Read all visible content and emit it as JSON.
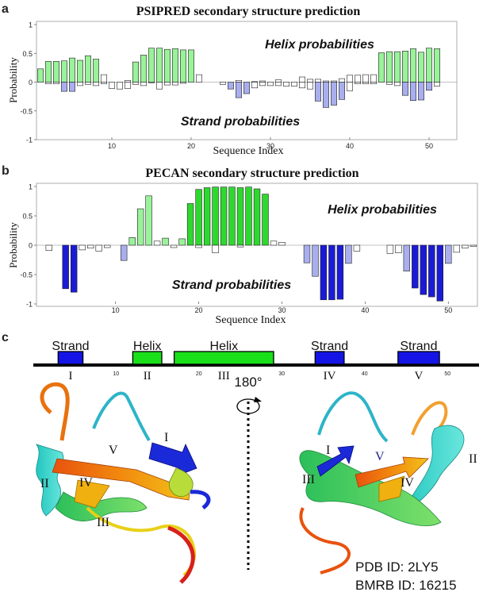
{
  "figure": {
    "panel_labels": [
      "a",
      "b",
      "c"
    ],
    "colors": {
      "helix_light": "#9af29a",
      "helix_dark": "#2ed82e",
      "strand_light": "#a9aeee",
      "strand_dark": "#1b1bd6",
      "neutral": "#ffffff",
      "element_box_strand": "#1414e6",
      "element_box_helix": "#19e019"
    }
  },
  "chart_data": [
    {
      "type": "bar",
      "panel": "a",
      "title": "PSIPRED secondary structure prediction",
      "xlabel": "Sequence Index",
      "ylabel": "Probability",
      "xlim": [
        0.5,
        53.5
      ],
      "ylim": [
        -1,
        1
      ],
      "xticks": [
        10,
        20,
        30,
        40,
        50
      ],
      "yticks": [
        -1,
        -0.5,
        0,
        0.5,
        1
      ],
      "yticklabels": [
        "-1",
        "-0.5",
        "0",
        "0.5",
        "1"
      ],
      "annotations": [
        "Helix probabilities",
        "Strand probabilities"
      ],
      "series": [
        {
          "name": "Helix",
          "values": [
            0.23,
            0.36,
            0.36,
            0.37,
            0.42,
            0.38,
            0.46,
            0.4,
            0.13,
            0,
            0,
            0.03,
            0.35,
            0.47,
            0.59,
            0.59,
            0.57,
            0.58,
            0.56,
            0.56,
            0.13,
            0,
            0,
            0,
            0,
            0.03,
            0,
            0.01,
            0.02,
            0,
            0.04,
            0,
            0,
            0.09,
            0.05,
            0.05,
            0.02,
            0.02,
            0.06,
            0.12,
            0.12,
            0.13,
            0.13,
            0.51,
            0.53,
            0.53,
            0.54,
            0.58,
            0.52,
            0.59,
            0.58,
            0,
            0
          ],
          "colors": [
            "#9af29a",
            "#9af29a",
            "#9af29a",
            "#9af29a",
            "#9af29a",
            "#9af29a",
            "#9af29a",
            "#9af29a",
            "#ffffff",
            "#ffffff",
            "#ffffff",
            "#ffffff",
            "#9af29a",
            "#9af29a",
            "#9af29a",
            "#9af29a",
            "#9af29a",
            "#9af29a",
            "#9af29a",
            "#9af29a",
            "#ffffff",
            "#ffffff",
            "#ffffff",
            "#ffffff",
            "#ffffff",
            "#ffffff",
            "#ffffff",
            "#ffffff",
            "#ffffff",
            "#ffffff",
            "#ffffff",
            "#ffffff",
            "#ffffff",
            "#ffffff",
            "#ffffff",
            "#ffffff",
            "#ffffff",
            "#ffffff",
            "#ffffff",
            "#ffffff",
            "#ffffff",
            "#ffffff",
            "#ffffff",
            "#9af29a",
            "#9af29a",
            "#9af29a",
            "#9af29a",
            "#9af29a",
            "#9af29a",
            "#9af29a",
            "#9af29a",
            "#ffffff",
            "#ffffff"
          ]
        },
        {
          "name": "Strand",
          "values": [
            0,
            -0.03,
            -0.03,
            -0.16,
            -0.16,
            -0.06,
            -0.04,
            -0.06,
            -0.03,
            -0.11,
            -0.12,
            -0.11,
            -0.04,
            -0.06,
            -0.01,
            -0.12,
            -0.05,
            -0.05,
            -0.02,
            0,
            0,
            0,
            0,
            -0.04,
            -0.12,
            -0.27,
            -0.2,
            -0.1,
            -0.06,
            -0.06,
            -0.06,
            -0.07,
            -0.07,
            -0.1,
            -0.12,
            -0.33,
            -0.44,
            -0.4,
            -0.3,
            -0.15,
            -0.03,
            -0.03,
            -0.03,
            0,
            -0.04,
            -0.06,
            -0.23,
            -0.32,
            -0.31,
            -0.14,
            -0.07,
            0,
            0
          ],
          "colors": [
            "#ffffff",
            "#ffffff",
            "#ffffff",
            "#a9aeee",
            "#a9aeee",
            "#ffffff",
            "#ffffff",
            "#ffffff",
            "#ffffff",
            "#ffffff",
            "#ffffff",
            "#ffffff",
            "#ffffff",
            "#ffffff",
            "#ffffff",
            "#ffffff",
            "#ffffff",
            "#ffffff",
            "#ffffff",
            "#ffffff",
            "#ffffff",
            "#ffffff",
            "#ffffff",
            "#ffffff",
            "#a9aeee",
            "#a9aeee",
            "#a9aeee",
            "#ffffff",
            "#ffffff",
            "#ffffff",
            "#ffffff",
            "#ffffff",
            "#ffffff",
            "#ffffff",
            "#ffffff",
            "#a9aeee",
            "#a9aeee",
            "#a9aeee",
            "#a9aeee",
            "#ffffff",
            "#ffffff",
            "#ffffff",
            "#ffffff",
            "#ffffff",
            "#ffffff",
            "#ffffff",
            "#a9aeee",
            "#a9aeee",
            "#a9aeee",
            "#a9aeee",
            "#ffffff",
            "#ffffff",
            "#ffffff"
          ]
        }
      ]
    },
    {
      "type": "bar",
      "panel": "b",
      "title": "PECAN secondary structure prediction",
      "xlabel": "Sequence Index",
      "ylabel": "Probability",
      "xlim": [
        0.5,
        53.5
      ],
      "ylim": [
        -1,
        1
      ],
      "xticks": [
        10,
        20,
        30,
        40,
        50
      ],
      "yticks": [
        -1,
        -0.5,
        0,
        0.5,
        1
      ],
      "yticklabels": [
        "-1",
        "-0.5",
        "0",
        "0.5",
        "1"
      ],
      "annotations": [
        "Helix probabilities",
        "Strand probabilities"
      ],
      "series": [
        {
          "name": "Helix",
          "values": [
            0,
            0,
            0,
            0,
            0,
            0,
            0,
            0,
            0,
            0,
            0,
            0.13,
            0.62,
            0.84,
            0.07,
            0.12,
            0,
            0.11,
            0.71,
            0.95,
            0.98,
            0.99,
            0.99,
            0.99,
            0.98,
            0.99,
            0.96,
            0.87,
            0.07,
            0.05,
            0,
            0,
            0,
            0,
            0,
            0,
            0,
            0,
            0,
            0,
            0,
            0,
            0,
            0,
            0,
            0,
            0,
            0,
            0,
            0,
            0,
            0,
            0
          ],
          "colors": [
            "#ffffff",
            "#ffffff",
            "#ffffff",
            "#ffffff",
            "#ffffff",
            "#ffffff",
            "#ffffff",
            "#ffffff",
            "#ffffff",
            "#ffffff",
            "#ffffff",
            "#9af29a",
            "#9af29a",
            "#9af29a",
            "#ffffff",
            "#9af29a",
            "#ffffff",
            "#9af29a",
            "#2ed82e",
            "#2ed82e",
            "#2ed82e",
            "#2ed82e",
            "#2ed82e",
            "#2ed82e",
            "#2ed82e",
            "#2ed82e",
            "#2ed82e",
            "#2ed82e",
            "#ffffff",
            "#ffffff",
            "#ffffff",
            "#ffffff",
            "#ffffff",
            "#ffffff",
            "#ffffff",
            "#ffffff",
            "#ffffff",
            "#ffffff",
            "#ffffff",
            "#ffffff",
            "#ffffff",
            "#ffffff",
            "#ffffff",
            "#ffffff",
            "#ffffff",
            "#ffffff",
            "#ffffff",
            "#ffffff",
            "#ffffff",
            "#ffffff",
            "#ffffff",
            "#ffffff",
            "#ffffff"
          ]
        },
        {
          "name": "Strand",
          "values": [
            0,
            -0.09,
            0,
            -0.74,
            -0.8,
            -0.08,
            -0.05,
            -0.1,
            -0.04,
            0,
            -0.26,
            0,
            0,
            0,
            0,
            0,
            -0.04,
            0,
            0,
            -0.04,
            0,
            -0.13,
            0,
            0,
            -0.03,
            0,
            0,
            0,
            0,
            0,
            0,
            0,
            -0.3,
            -0.53,
            -0.93,
            -0.93,
            -0.92,
            -0.31,
            -0.1,
            0,
            0,
            0,
            -0.14,
            -0.13,
            -0.44,
            -0.73,
            -0.84,
            -0.88,
            -0.95,
            -0.31,
            -0.12,
            -0.05,
            -0.02
          ],
          "colors": [
            "#ffffff",
            "#ffffff",
            "#ffffff",
            "#1b1bd6",
            "#1b1bd6",
            "#ffffff",
            "#ffffff",
            "#ffffff",
            "#ffffff",
            "#ffffff",
            "#a9aeee",
            "#ffffff",
            "#ffffff",
            "#ffffff",
            "#ffffff",
            "#ffffff",
            "#ffffff",
            "#ffffff",
            "#ffffff",
            "#ffffff",
            "#ffffff",
            "#ffffff",
            "#ffffff",
            "#ffffff",
            "#ffffff",
            "#ffffff",
            "#ffffff",
            "#ffffff",
            "#ffffff",
            "#ffffff",
            "#ffffff",
            "#ffffff",
            "#a9aeee",
            "#a9aeee",
            "#1b1bd6",
            "#1b1bd6",
            "#1b1bd6",
            "#a9aeee",
            "#ffffff",
            "#ffffff",
            "#ffffff",
            "#ffffff",
            "#ffffff",
            "#ffffff",
            "#a9aeee",
            "#1b1bd6",
            "#1b1bd6",
            "#1b1bd6",
            "#1b1bd6",
            "#a9aeee",
            "#ffffff",
            "#ffffff",
            "#ffffff"
          ]
        }
      ]
    }
  ],
  "panel_c": {
    "track_ticks": [
      "10",
      "20",
      "30",
      "40",
      "50"
    ],
    "elements": [
      {
        "type": "strand",
        "label": "Strand",
        "roman": "I",
        "start": 3.5,
        "end": 6.5
      },
      {
        "type": "helix",
        "label": "Helix",
        "roman": "II",
        "start": 12.5,
        "end": 16
      },
      {
        "type": "helix",
        "label": "Helix",
        "roman": "III",
        "start": 17.5,
        "end": 29.5
      },
      {
        "type": "strand",
        "label": "Strand",
        "roman": "IV",
        "start": 34.5,
        "end": 38
      },
      {
        "type": "strand",
        "label": "Strand",
        "roman": "V",
        "start": 44.5,
        "end": 49.5
      }
    ],
    "rotation_label": "180°",
    "left_view_labels": [
      "I",
      "II",
      "III",
      "IV",
      "V"
    ],
    "right_view_labels": [
      "I",
      "II",
      "III",
      "IV",
      "V"
    ],
    "ids": [
      "PDB ID: 2LY5",
      "BMRB ID: 16215"
    ]
  }
}
